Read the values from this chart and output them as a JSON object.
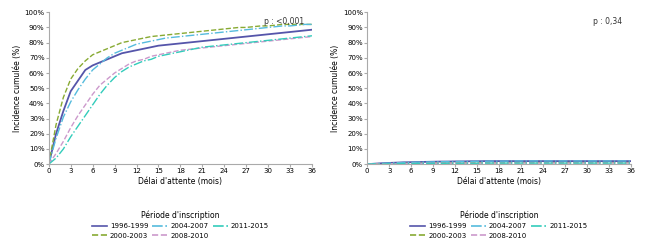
{
  "left_pvalue": "p : <0,001",
  "right_pvalue": "p : 0,34",
  "xlabel": "Délai d'attente (mois)",
  "ylabel": "Incidence cumulée (%)",
  "legend_title": "Période d'inscription",
  "legend_entries": [
    "1996-1999",
    "2000-2003",
    "2004-2007",
    "2008-2010",
    "2011-2015"
  ],
  "xticks": [
    0,
    3,
    6,
    9,
    12,
    15,
    18,
    21,
    24,
    27,
    30,
    33,
    36
  ],
  "yticks": [
    0,
    10,
    20,
    30,
    40,
    50,
    60,
    70,
    80,
    90,
    100
  ],
  "ls_map": {
    "1996-1999": {
      "ls": "solid",
      "color": "#5555aa",
      "lw": 1.3
    },
    "2000-2003": {
      "ls": "dashed",
      "color": "#88aa33",
      "lw": 1.0
    },
    "2004-2007": {
      "ls": "dashdot",
      "color": "#55bbdd",
      "lw": 1.0
    },
    "2008-2010": {
      "ls": "dashed",
      "color": "#cc99cc",
      "lw": 1.0
    },
    "2011-2015": {
      "ls": "dashdot",
      "color": "#33ccbb",
      "lw": 1.0
    }
  },
  "left_curves": {
    "1996-1999": [
      0,
      20,
      35,
      48,
      55,
      62,
      65,
      67,
      69,
      71,
      73,
      74,
      75,
      76,
      77,
      78,
      78.5,
      79,
      79.5,
      80,
      80.5,
      81,
      81.5,
      82,
      82.5,
      83,
      83.5,
      84,
      84.5,
      85,
      85.5,
      86,
      86.5,
      87,
      87.5,
      88,
      88.5
    ],
    "2000-2003": [
      0,
      26,
      44,
      56,
      63,
      68,
      72,
      74,
      76,
      78,
      80,
      81,
      82,
      83,
      84,
      84.5,
      85,
      85.5,
      86,
      86.5,
      87,
      87.5,
      88,
      88.5,
      89,
      89.5,
      90,
      90,
      90.5,
      91,
      91,
      91.5,
      92,
      92,
      92,
      92,
      92
    ],
    "2004-2007": [
      0,
      17,
      31,
      41,
      49,
      56,
      62,
      66,
      70,
      73,
      75,
      77,
      79,
      80,
      81,
      82,
      83,
      83.5,
      84,
      84.5,
      85,
      85.5,
      86,
      86.5,
      87,
      87.5,
      88,
      88.5,
      89,
      89.5,
      90,
      90.5,
      91,
      91,
      91.5,
      92,
      92
    ],
    "2008-2010": [
      0,
      7,
      15,
      24,
      32,
      39,
      46,
      52,
      56,
      60,
      63,
      66,
      68,
      69,
      71,
      72,
      73,
      74,
      75,
      75.5,
      76,
      76.5,
      77,
      77.5,
      78,
      78.5,
      79,
      79.5,
      80,
      80.5,
      81,
      81.5,
      82,
      82.5,
      83,
      83.5,
      84
    ],
    "2011-2015": [
      0,
      4,
      10,
      18,
      25,
      32,
      39,
      46,
      52,
      57,
      61,
      64,
      66,
      68,
      69,
      71,
      72,
      73,
      74,
      75,
      76,
      77,
      77.5,
      78,
      78.5,
      79,
      79.5,
      80,
      80.5,
      81,
      81.5,
      82,
      82.5,
      83,
      83.5,
      84,
      84.5
    ]
  },
  "right_curves": {
    "1996-1999": [
      0,
      0.3,
      0.6,
      0.8,
      1.0,
      1.2,
      1.3,
      1.4,
      1.5,
      1.6,
      1.7,
      1.7,
      1.8,
      1.8,
      1.9,
      1.9,
      2.0,
      2.0,
      2.0,
      2.0,
      2.0,
      2.0,
      2.0,
      2.0,
      2.0,
      2.0,
      2.0,
      2.0,
      2.0,
      2.0,
      2.0,
      2.0,
      2.0,
      2.0,
      2.0,
      2.0,
      2.0
    ],
    "2000-2003": [
      0,
      0.1,
      0.2,
      0.3,
      0.4,
      0.5,
      0.5,
      0.6,
      0.6,
      0.7,
      0.7,
      0.7,
      0.8,
      0.8,
      0.8,
      0.9,
      0.9,
      0.9,
      0.9,
      0.9,
      1.0,
      1.0,
      1.0,
      1.0,
      1.0,
      1.0,
      1.0,
      1.0,
      1.0,
      1.0,
      1.0,
      1.0,
      1.0,
      1.0,
      1.0,
      1.0,
      1.0
    ],
    "2004-2007": [
      0,
      0.3,
      0.5,
      0.7,
      0.9,
      1.1,
      1.2,
      1.3,
      1.4,
      1.5,
      1.6,
      1.7,
      1.7,
      1.8,
      1.8,
      1.9,
      1.9,
      2.0,
      2.0,
      2.0,
      2.1,
      2.1,
      2.1,
      2.1,
      2.1,
      2.1,
      2.1,
      2.1,
      2.1,
      2.1,
      2.1,
      2.1,
      2.1,
      2.1,
      2.1,
      2.1,
      2.1
    ],
    "2008-2010": [
      0,
      0.1,
      0.2,
      0.3,
      0.4,
      0.4,
      0.5,
      0.5,
      0.5,
      0.6,
      0.6,
      0.6,
      0.7,
      0.7,
      0.7,
      0.7,
      0.7,
      0.8,
      0.8,
      0.8,
      0.8,
      0.8,
      0.8,
      0.8,
      0.8,
      0.8,
      0.8,
      0.8,
      0.8,
      0.8,
      0.8,
      0.8,
      0.8,
      0.8,
      0.8,
      0.8,
      0.8
    ],
    "2011-2015": [
      0,
      0.1,
      0.1,
      0.2,
      0.3,
      0.4,
      0.4,
      0.5,
      0.5,
      0.5,
      0.5,
      0.6,
      0.6,
      0.6,
      0.6,
      0.6,
      0.7,
      0.7,
      0.7,
      0.7,
      0.7,
      0.7,
      0.7,
      0.7,
      0.7,
      0.7,
      0.7,
      0.7,
      0.7,
      0.7,
      0.7,
      0.7,
      0.7,
      0.7,
      0.7,
      0.7,
      0.7
    ]
  },
  "bg_color": "#ffffff"
}
